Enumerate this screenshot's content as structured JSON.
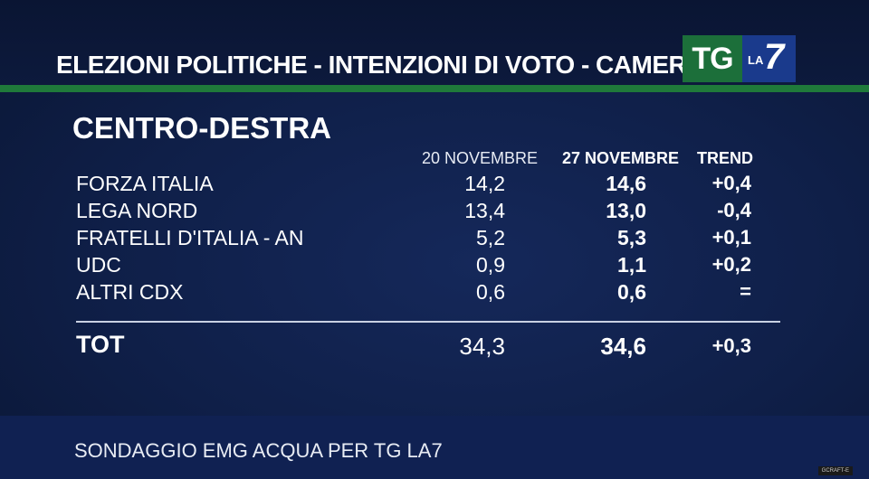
{
  "header": {
    "headline": "ELEZIONI POLITICHE - INTENZIONI DI VOTO - CAMERA",
    "logo": {
      "tg": "TG",
      "la": "LA",
      "seven": "7"
    }
  },
  "section": {
    "title": "CENTRO-DESTRA",
    "columns": {
      "date1": "20 NOVEMBRE",
      "date2": "27 NOVEMBRE",
      "trend": "TREND"
    },
    "rows": [
      {
        "party": "FORZA ITALIA",
        "v20": "14,2",
        "v27": "14,6",
        "trend": "+0,4"
      },
      {
        "party": "LEGA NORD",
        "v20": "13,4",
        "v27": "13,0",
        "trend": "-0,4"
      },
      {
        "party": "FRATELLI D'ITALIA - AN",
        "v20": "5,2",
        "v27": "5,3",
        "trend": "+0,1"
      },
      {
        "party": "UDC",
        "v20": "0,9",
        "v27": "1,1",
        "trend": "+0,2"
      },
      {
        "party": "ALTRI CDX",
        "v20": "0,6",
        "v27": "0,6",
        "trend": "="
      }
    ],
    "total": {
      "label": "TOT",
      "v20": "34,3",
      "v27": "34,6",
      "trend": "+0,3"
    }
  },
  "footer": {
    "text": "SONDAGGIO EMG ACQUA PER TG LA7"
  },
  "watermark": "GCRAFT-E"
}
